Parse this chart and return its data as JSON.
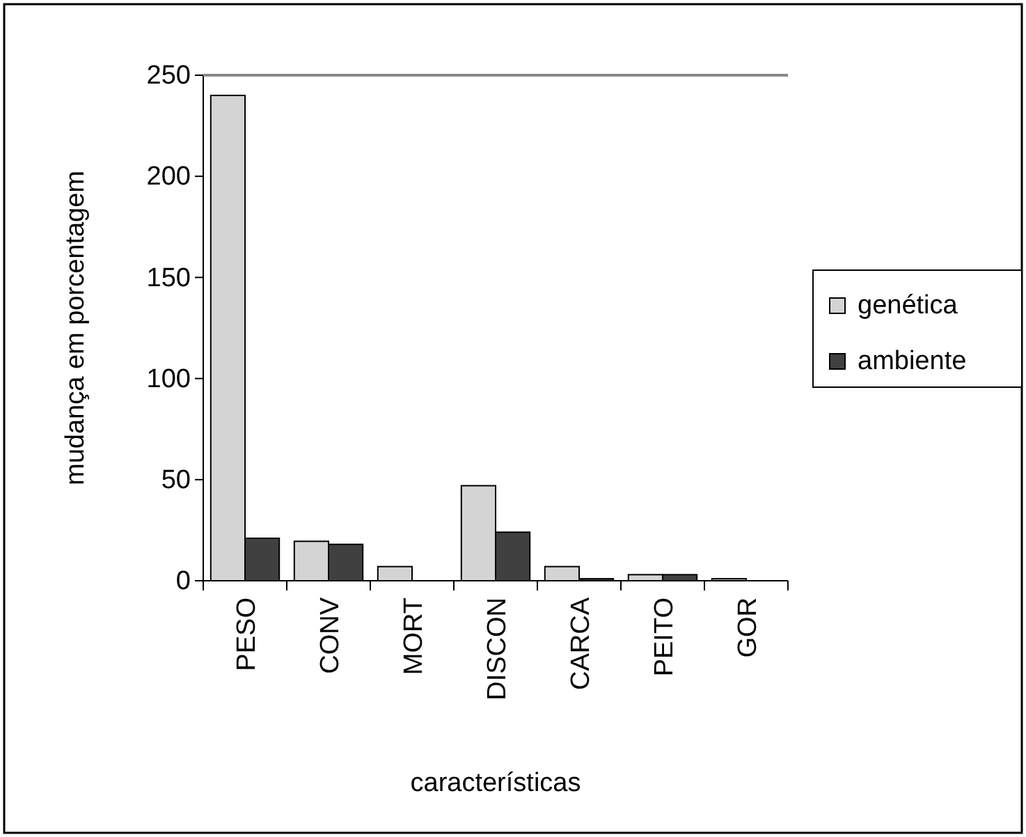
{
  "chart_data": {
    "type": "bar",
    "xlabel": "características",
    "ylabel": "mudança em porcentagem",
    "categories": [
      "PESO",
      "CONV",
      "MORT",
      "DISCON",
      "CARCA",
      "PEITO",
      "GOR"
    ],
    "series": [
      {
        "name": "genética",
        "color": "#d4d4d4",
        "values": [
          240,
          19.5,
          7,
          47,
          7,
          3,
          1
        ]
      },
      {
        "name": "ambiente",
        "color": "#404040",
        "values": [
          21,
          18,
          0,
          24,
          1,
          3,
          0
        ]
      }
    ],
    "ylim": [
      0,
      250
    ],
    "yticks": [
      0,
      50,
      100,
      150,
      200,
      250
    ],
    "grid": false,
    "legend": "right"
  }
}
